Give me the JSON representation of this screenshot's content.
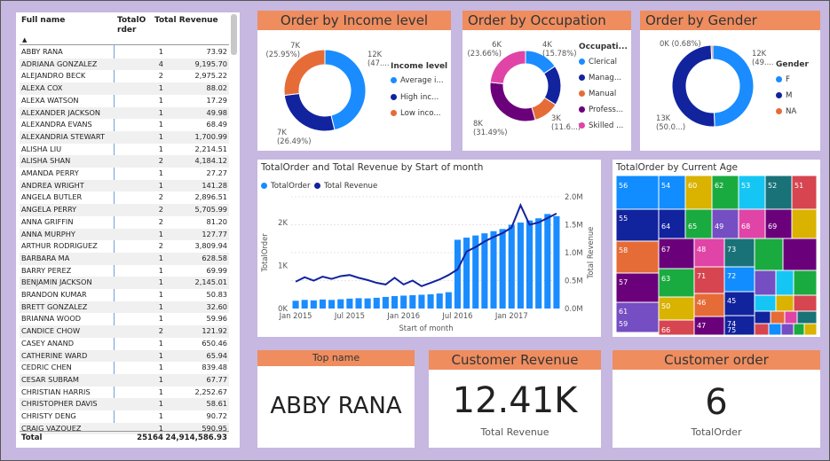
{
  "table": {
    "headers": {
      "name": "Full name",
      "order": "TotalO\nrder",
      "revenue": "Total Revenue"
    },
    "rows": [
      [
        "ABBY RANA",
        "1",
        "73.92"
      ],
      [
        "ADRIANA GONZALEZ",
        "4",
        "9,195.70"
      ],
      [
        "ALEJANDRO BECK",
        "2",
        "2,975.22"
      ],
      [
        "ALEXA COX",
        "1",
        "88.02"
      ],
      [
        "ALEXA WATSON",
        "1",
        "17.29"
      ],
      [
        "ALEXANDER JACKSON",
        "1",
        "49.98"
      ],
      [
        "ALEXANDRA EVANS",
        "1",
        "68.49"
      ],
      [
        "ALEXANDRIA STEWART",
        "1",
        "1,700.99"
      ],
      [
        "ALISHA LIU",
        "1",
        "2,214.51"
      ],
      [
        "ALISHA SHAN",
        "2",
        "4,184.12"
      ],
      [
        "AMANDA PERRY",
        "1",
        "27.27"
      ],
      [
        "ANDREA WRIGHT",
        "1",
        "141.28"
      ],
      [
        "ANGELA BUTLER",
        "2",
        "2,896.51"
      ],
      [
        "ANGELA PERRY",
        "2",
        "5,705.99"
      ],
      [
        "ANNA GRIFFIN",
        "2",
        "81.20"
      ],
      [
        "ANNA MURPHY",
        "1",
        "127.77"
      ],
      [
        "ARTHUR RODRIGUEZ",
        "2",
        "3,809.94"
      ],
      [
        "BARBARA MA",
        "1",
        "628.58"
      ],
      [
        "BARRY PEREZ",
        "1",
        "69.99"
      ],
      [
        "BENJAMIN JACKSON",
        "1",
        "2,145.01"
      ],
      [
        "BRANDON KUMAR",
        "1",
        "50.83"
      ],
      [
        "BRETT GONZALEZ",
        "1",
        "32.60"
      ],
      [
        "BRIANNA WOOD",
        "1",
        "59.96"
      ],
      [
        "CANDICE CHOW",
        "2",
        "121.92"
      ],
      [
        "CASEY ANAND",
        "1",
        "650.46"
      ],
      [
        "CATHERINE WARD",
        "1",
        "65.94"
      ],
      [
        "CEDRIC CHEN",
        "1",
        "839.48"
      ],
      [
        "CESAR SUBRAM",
        "1",
        "67.77"
      ],
      [
        "CHRISTIAN HARRIS",
        "1",
        "2,252.67"
      ],
      [
        "CHRISTOPHER DAVIS",
        "1",
        "58.61"
      ],
      [
        "CHRISTY DENG",
        "1",
        "90.72"
      ],
      [
        "CRAIG VAZQUEZ",
        "1",
        "590.95"
      ]
    ],
    "total": {
      "label": "Total",
      "order": "25164",
      "revenue": "24,914,586.93"
    }
  },
  "income": {
    "title": "Order by Income level",
    "legend_title": "Income level",
    "legend": [
      "Average i...",
      "High inc...",
      "Low inco..."
    ],
    "labels": [
      {
        "value": "7K",
        "pct": "(25.95%)"
      },
      {
        "value": "12K",
        "pct": "(47...."
      },
      {
        "value": "7K",
        "pct": "(26.49%)"
      }
    ]
  },
  "occupation": {
    "title": "Order by Occupation",
    "legend_title": "Occupati...",
    "legend": [
      "Clerical",
      "Manag...",
      "Manual",
      "Profess...",
      "Skilled ..."
    ],
    "labels": [
      {
        "value": "6K",
        "pct": "(23.66%)"
      },
      {
        "value": "4K",
        "pct": "(15.78%)"
      },
      {
        "value": "3K",
        "pct": "(11.6...)"
      },
      {
        "value": "8K",
        "pct": "(31.49%)"
      }
    ]
  },
  "gender": {
    "title": "Order by Gender",
    "legend_title": "Gender",
    "legend": [
      "F",
      "M",
      "NA"
    ],
    "labels": [
      {
        "value": "0K",
        "pct": "(0.68%)"
      },
      {
        "value": "12K",
        "pct": "(49...."
      },
      {
        "value": "13K",
        "pct": "(50.0...)"
      }
    ]
  },
  "combo": {
    "title": "TotalOrder and Total Revenue by Start of month",
    "legend": [
      "TotalOrder",
      "Total Revenue"
    ],
    "ylabel_left": "TotalOrder",
    "ylabel_right": "Total Revenue",
    "xlabel": "Start of month",
    "left_ticks": [
      "0K",
      "1K",
      "2K"
    ],
    "right_ticks": [
      "0.0M",
      "0.5M",
      "1.0M",
      "1.5M",
      "2.0M"
    ],
    "x_ticks": [
      "Jan 2015",
      "Jul 2015",
      "Jan 2016",
      "Jul 2016",
      "Jan 2017"
    ]
  },
  "treemap": {
    "title": "TotalOrder by Current Age",
    "labels": [
      "56",
      "55",
      "58",
      "57",
      "61",
      "59",
      "54",
      "60",
      "62",
      "53",
      "52",
      "51",
      "64",
      "65",
      "49",
      "68",
      "69",
      "67",
      "63",
      "50",
      "66",
      "48",
      "71",
      "46",
      "47",
      "73",
      "72",
      "45",
      "74",
      "75"
    ]
  },
  "chart_data": [
    {
      "type": "pie",
      "title": "Order by Income level",
      "categories": [
        "Average income",
        "High income",
        "Low income"
      ],
      "values": [
        12000,
        7000,
        7000
      ],
      "percentages": [
        47.56,
        26.49,
        25.95
      ],
      "colors": [
        "#1a8cff",
        "#12239e",
        "#e66c37"
      ]
    },
    {
      "type": "pie",
      "title": "Order by Occupation",
      "categories": [
        "Clerical",
        "Management",
        "Manual",
        "Professional",
        "Skilled Manual"
      ],
      "values": [
        4000,
        4700,
        3000,
        8000,
        6000
      ],
      "percentages": [
        15.78,
        17.47,
        11.6,
        31.49,
        23.66
      ],
      "colors": [
        "#1a8cff",
        "#12239e",
        "#e66c37",
        "#6b007b",
        "#e044a7"
      ]
    },
    {
      "type": "pie",
      "title": "Order by Gender",
      "categories": [
        "F",
        "M",
        "NA"
      ],
      "values": [
        12400,
        12600,
        170
      ],
      "percentages": [
        49.3,
        50.02,
        0.68
      ],
      "colors": [
        "#1a8cff",
        "#12239e",
        "#e66c37"
      ]
    },
    {
      "type": "bar",
      "title": "TotalOrder and Total Revenue by Start of month",
      "x": [
        "2015-01",
        "2015-02",
        "2015-03",
        "2015-04",
        "2015-05",
        "2015-06",
        "2015-07",
        "2015-08",
        "2015-09",
        "2015-10",
        "2015-11",
        "2015-12",
        "2016-01",
        "2016-02",
        "2016-03",
        "2016-04",
        "2016-05",
        "2016-06",
        "2016-07",
        "2016-08",
        "2016-09",
        "2016-10",
        "2016-11",
        "2016-12",
        "2017-01",
        "2017-02",
        "2017-03",
        "2017-04",
        "2017-05",
        "2017-06"
      ],
      "series": [
        {
          "name": "TotalOrder",
          "axis": "left",
          "type": "bar",
          "color": "#1a8cff",
          "values": [
            180,
            200,
            190,
            210,
            200,
            215,
            230,
            240,
            235,
            250,
            270,
            290,
            300,
            310,
            320,
            330,
            350,
            380,
            1600,
            1650,
            1700,
            1750,
            1800,
            1850,
            1950,
            2000,
            2050,
            2100,
            2200,
            2150
          ]
        },
        {
          "name": "Total Revenue",
          "axis": "right",
          "type": "line",
          "color": "#12239e",
          "values": [
            0.48,
            0.56,
            0.5,
            0.57,
            0.53,
            0.58,
            0.6,
            0.55,
            0.51,
            0.46,
            0.43,
            0.55,
            0.43,
            0.5,
            0.4,
            0.46,
            0.52,
            0.6,
            0.7,
            1.02,
            1.1,
            1.2,
            1.28,
            1.35,
            1.45,
            1.85,
            1.5,
            1.54,
            1.62,
            1.7
          ]
        }
      ],
      "xlabel": "Start of month",
      "ylabel": "TotalOrder",
      "ylabel_right": "Total Revenue",
      "ylim": [
        0,
        2600
      ],
      "ylim_right": [
        0,
        2.0
      ]
    },
    {
      "type": "treemap",
      "title": "TotalOrder by Current Age",
      "categories": [
        "56",
        "55",
        "58",
        "57",
        "61",
        "59",
        "54",
        "60",
        "62",
        "53",
        "52",
        "51",
        "64",
        "65",
        "49",
        "68",
        "69",
        "67",
        "63",
        "50",
        "66",
        "48",
        "71",
        "46",
        "47",
        "73",
        "72",
        "45",
        "74",
        "75"
      ]
    }
  ],
  "top_name": {
    "title": "Top name",
    "value": "ABBY RANA"
  },
  "customer_revenue": {
    "title": "Customer Revenue",
    "value": "12.41K",
    "sub": "Total Revenue"
  },
  "customer_order": {
    "title": "Customer order",
    "value": "6",
    "sub": "TotalOrder"
  }
}
